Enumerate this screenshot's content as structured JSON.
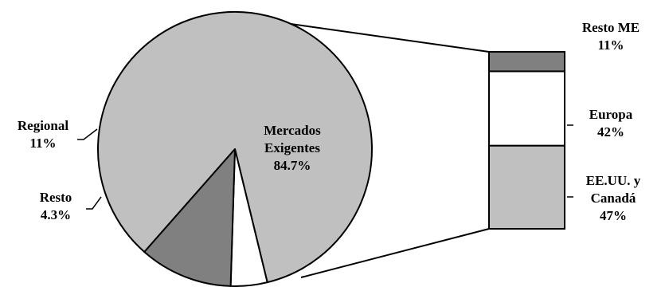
{
  "chart_data": {
    "type": "pie",
    "pie": {
      "slices": [
        {
          "name": "Mercados Exigentes",
          "label_lines": [
            "Mercados",
            "Exigentes"
          ],
          "value": 84.7,
          "value_label": "84.7%",
          "color": "#c0c0c0"
        },
        {
          "name": "Resto",
          "label_lines": [
            "Resto"
          ],
          "value": 4.3,
          "value_label": "4.3%",
          "color": "#ffffff"
        },
        {
          "name": "Regional",
          "label_lines": [
            "Regional"
          ],
          "value": 11,
          "value_label": "11%",
          "color": "#808080"
        }
      ]
    },
    "bar_of_pie": {
      "source_slice": "Mercados Exigentes",
      "segments": [
        {
          "name": "EE.UU. y Canadá",
          "label_lines": [
            "EE.UU. y",
            "Canadá"
          ],
          "value": 47,
          "value_label": "47%",
          "color": "#c0c0c0"
        },
        {
          "name": "Europa",
          "label_lines": [
            "Europa"
          ],
          "value": 42,
          "value_label": "42%",
          "color": "#ffffff"
        },
        {
          "name": "Resto ME",
          "label_lines": [
            "Resto ME"
          ],
          "value": 11,
          "value_label": "11%",
          "color": "#808080"
        }
      ]
    }
  }
}
